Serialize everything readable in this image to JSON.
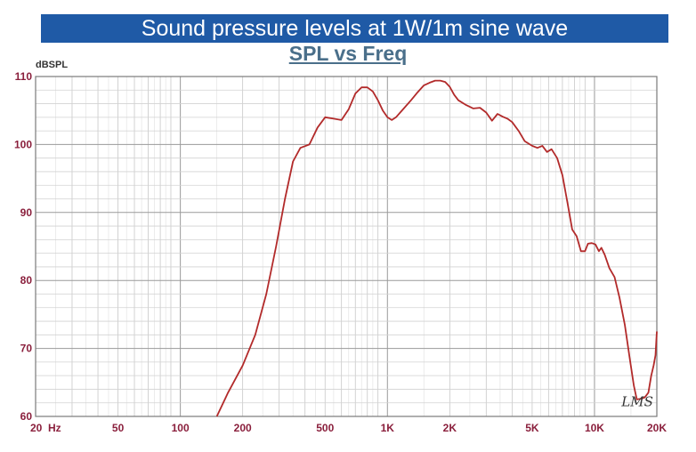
{
  "banner": {
    "text": "Sound pressure levels at 1W/1m sine wave"
  },
  "chart_data": {
    "type": "line",
    "title": "SPL vs Freq",
    "ylabel": "dBSPL",
    "xscale": "log",
    "xlim": [
      20,
      20000
    ],
    "ylim": [
      60,
      110
    ],
    "grid": true,
    "x_ticks": [
      {
        "value": 20,
        "label": "20  Hz"
      },
      {
        "value": 50,
        "label": "50"
      },
      {
        "value": 100,
        "label": "100"
      },
      {
        "value": 200,
        "label": "200"
      },
      {
        "value": 500,
        "label": "500"
      },
      {
        "value": 1000,
        "label": "1K"
      },
      {
        "value": 2000,
        "label": "2K"
      },
      {
        "value": 5000,
        "label": "5K"
      },
      {
        "value": 10000,
        "label": "10K"
      },
      {
        "value": 20000,
        "label": "20K"
      }
    ],
    "y_ticks": [
      {
        "value": 60,
        "label": "60"
      },
      {
        "value": 70,
        "label": "70"
      },
      {
        "value": 80,
        "label": "80"
      },
      {
        "value": 90,
        "label": "90"
      },
      {
        "value": 100,
        "label": "100"
      },
      {
        "value": 110,
        "label": "110"
      }
    ],
    "series": [
      {
        "color": "#b22a2a",
        "points": [
          [
            150,
            60
          ],
          [
            170,
            63.5
          ],
          [
            200,
            67.5
          ],
          [
            230,
            72
          ],
          [
            260,
            78
          ],
          [
            290,
            85
          ],
          [
            320,
            92
          ],
          [
            350,
            97.5
          ],
          [
            380,
            99.5
          ],
          [
            420,
            100
          ],
          [
            460,
            102.5
          ],
          [
            500,
            104
          ],
          [
            550,
            103.8
          ],
          [
            600,
            103.6
          ],
          [
            650,
            105.2
          ],
          [
            700,
            107.5
          ],
          [
            750,
            108.4
          ],
          [
            800,
            108.4
          ],
          [
            850,
            107.8
          ],
          [
            900,
            106.5
          ],
          [
            950,
            105
          ],
          [
            1000,
            104
          ],
          [
            1050,
            103.6
          ],
          [
            1100,
            104
          ],
          [
            1200,
            105.3
          ],
          [
            1300,
            106.5
          ],
          [
            1400,
            107.7
          ],
          [
            1500,
            108.7
          ],
          [
            1600,
            109.1
          ],
          [
            1700,
            109.4
          ],
          [
            1800,
            109.4
          ],
          [
            1900,
            109.2
          ],
          [
            2000,
            108.5
          ],
          [
            2100,
            107.3
          ],
          [
            2200,
            106.5
          ],
          [
            2400,
            105.8
          ],
          [
            2600,
            105.3
          ],
          [
            2800,
            105.4
          ],
          [
            3000,
            104.7
          ],
          [
            3200,
            103.5
          ],
          [
            3400,
            104.5
          ],
          [
            3600,
            104.1
          ],
          [
            3800,
            103.8
          ],
          [
            4000,
            103.3
          ],
          [
            4300,
            102
          ],
          [
            4600,
            100.5
          ],
          [
            5000,
            99.8
          ],
          [
            5300,
            99.5
          ],
          [
            5600,
            99.8
          ],
          [
            5900,
            98.9
          ],
          [
            6200,
            99.3
          ],
          [
            6600,
            98
          ],
          [
            7000,
            95.5
          ],
          [
            7400,
            91.5
          ],
          [
            7800,
            87.5
          ],
          [
            8200,
            86.5
          ],
          [
            8600,
            84.3
          ],
          [
            9000,
            84.3
          ],
          [
            9300,
            85.4
          ],
          [
            9700,
            85.5
          ],
          [
            10100,
            85.3
          ],
          [
            10500,
            84.3
          ],
          [
            10800,
            84.8
          ],
          [
            11200,
            83.8
          ],
          [
            11800,
            81.8
          ],
          [
            12500,
            80.5
          ],
          [
            13200,
            77.5
          ],
          [
            14000,
            73.5
          ],
          [
            14800,
            68.5
          ],
          [
            15500,
            64.5
          ],
          [
            16000,
            62.5
          ],
          [
            16800,
            62.6
          ],
          [
            17500,
            62.8
          ],
          [
            18200,
            63.5
          ],
          [
            18800,
            66
          ],
          [
            19300,
            67.5
          ],
          [
            19700,
            69
          ],
          [
            20000,
            72.5
          ]
        ]
      }
    ],
    "annotation": "LMS"
  }
}
